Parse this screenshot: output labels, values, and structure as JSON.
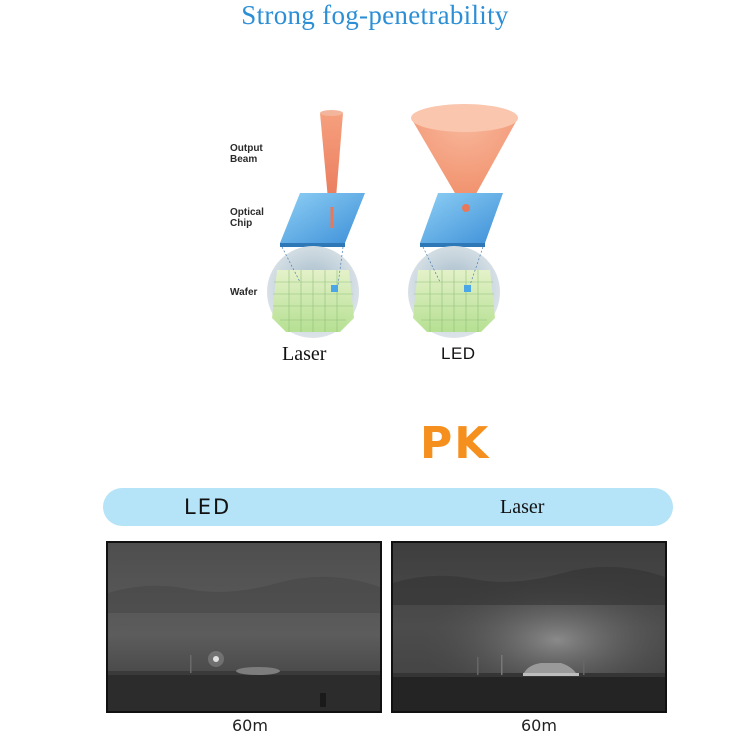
{
  "title": "Strong fog-penetrability",
  "diagram": {
    "labels": {
      "output_beam": "Output\nBeam",
      "optical_chip": "Optical\nChip",
      "wafer": "Wafer"
    },
    "captions": {
      "laser": "Laser",
      "led": "LED"
    },
    "colors": {
      "beam": "#f4a382",
      "chip": "#4aa6e6",
      "wafer_green": "#c5e8a2"
    }
  },
  "comparison": {
    "pk_text": "PK",
    "bar": {
      "led_label": "LED",
      "laser_label": "Laser"
    },
    "photos": [
      {
        "name": "led",
        "distance": "60m"
      },
      {
        "name": "laser",
        "distance": "60m"
      }
    ],
    "colors": {
      "pk": "#f5901e",
      "bar": "#b5e3f7"
    }
  }
}
